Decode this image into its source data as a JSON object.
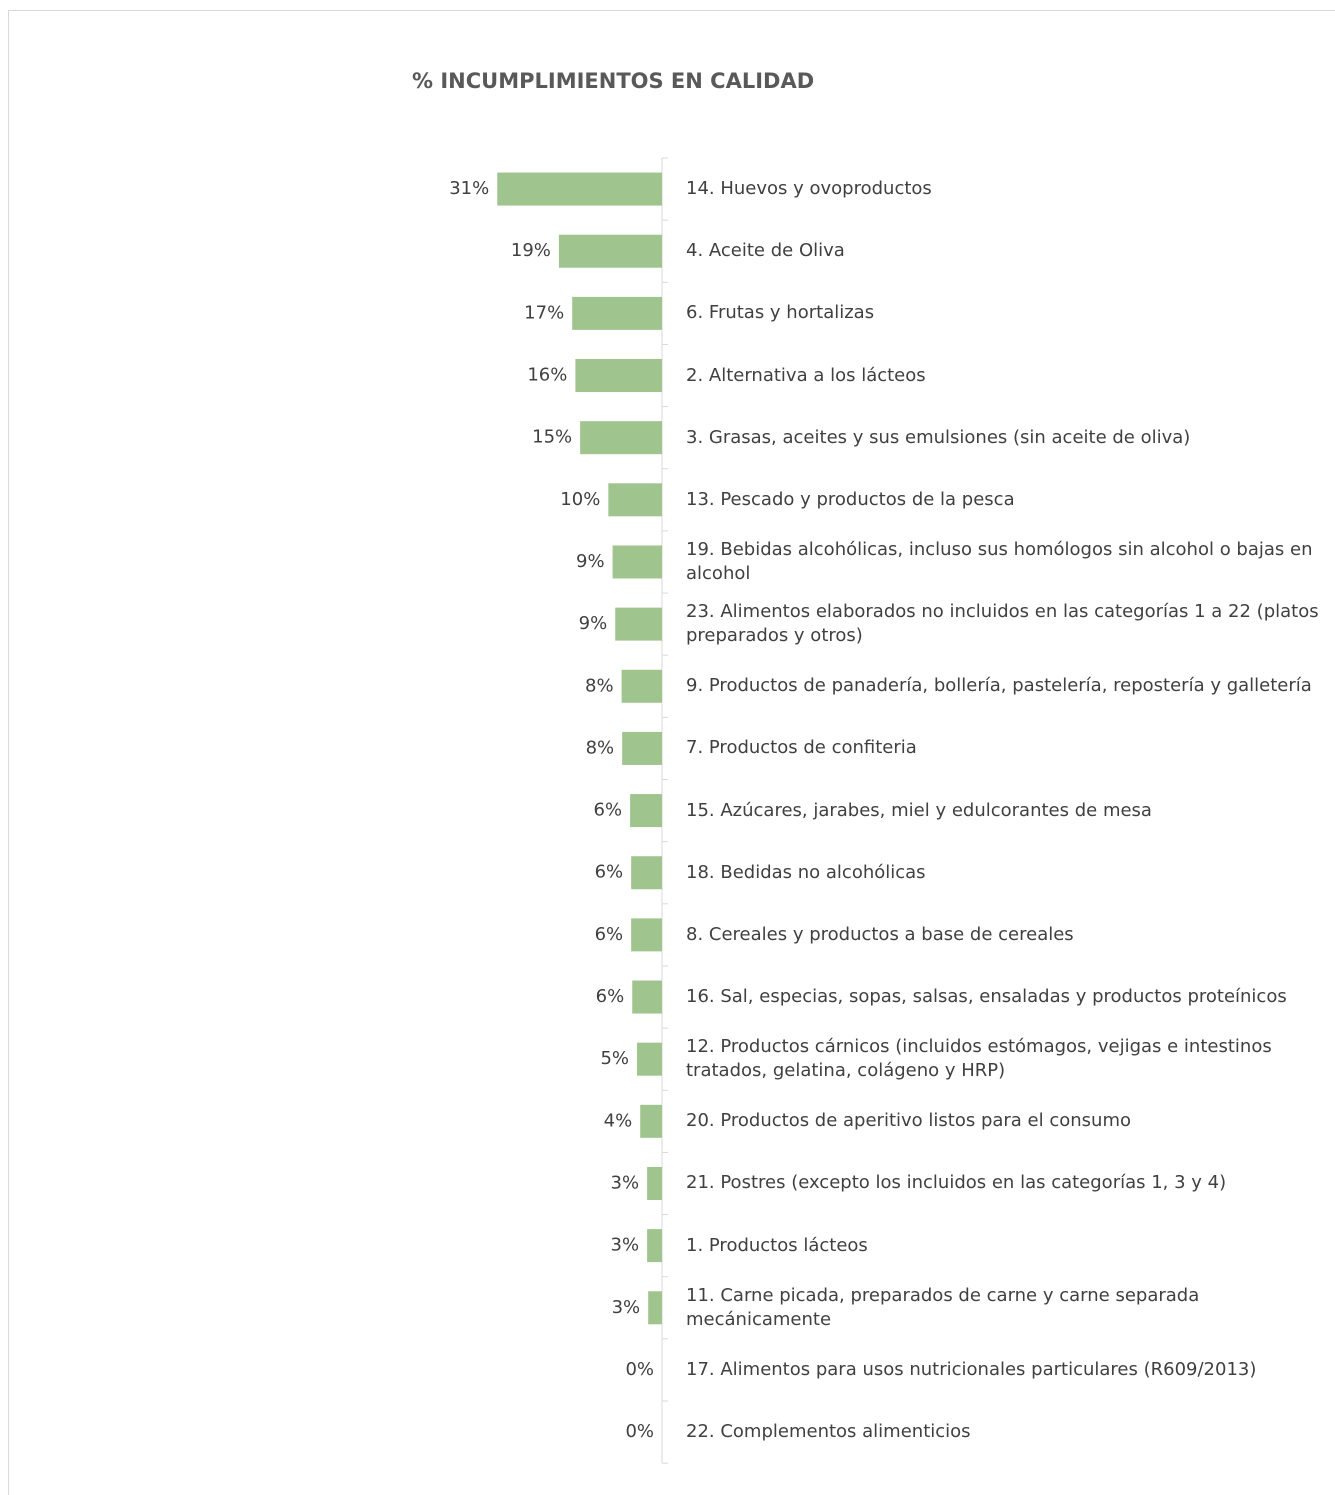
{
  "chart_data": {
    "type": "barh",
    "title": "% INCUMPLIMIENTOS EN CALIDAD",
    "categories": [
      "14. Huevos y ovoproductos",
      "4. Aceite de Oliva",
      "6. Frutas y hortalizas",
      "2. Alternativa a los lácteos",
      "3. Grasas, aceites y sus emulsiones (sin aceite de oliva)",
      "13. Pescado y productos de la pesca",
      "19. Bebidas alcohólicas, incluso sus homólogos sin alcohol o bajas en alcohol",
      "23. Alimentos elaborados no incluidos en las categorías 1 a 22 (platos preparados y otros)",
      "9. Productos de panadería, bollería, pastelería, repostería y galletería",
      "7. Productos de confiteria",
      "15. Azúcares, jarabes, miel y edulcorantes de mesa",
      "18. Bedidas no alcohólicas",
      "8. Cereales y productos a base de cereales",
      "16. Sal, especias, sopas, salsas, ensaladas y productos proteínicos",
      "12. Productos cárnicos (incluidos estómagos, vejigas e intestinos tratados, gelatina, colágeno y HRP)",
      "20. Productos de aperitivo listos para el consumo",
      "21. Postres (excepto los incluidos en las categorías 1, 3 y 4)",
      "1. Productos lácteos",
      "11. Carne picada, preparados de carne y carne separada mecánicamente",
      "17. Alimentos para usos nutricionales particulares (R609/2013)",
      "22. Complementos alimenticios"
    ],
    "values": [
      31,
      19.4,
      16.9,
      16.3,
      15.4,
      10.1,
      9.3,
      8.8,
      7.6,
      7.5,
      6.0,
      5.8,
      5.8,
      5.6,
      4.7,
      4.1,
      2.8,
      2.8,
      2.6,
      0,
      0
    ],
    "value_labels": [
      "31%",
      "19%",
      "17%",
      "16%",
      "15%",
      "10%",
      "9%",
      "9%",
      "8%",
      "8%",
      "6%",
      "6%",
      "6%",
      "6%",
      "5%",
      "4%",
      "3%",
      "3%",
      "3%",
      "0%",
      "0%"
    ],
    "color": "#a0c48e",
    "xlim": [
      0,
      35
    ]
  }
}
